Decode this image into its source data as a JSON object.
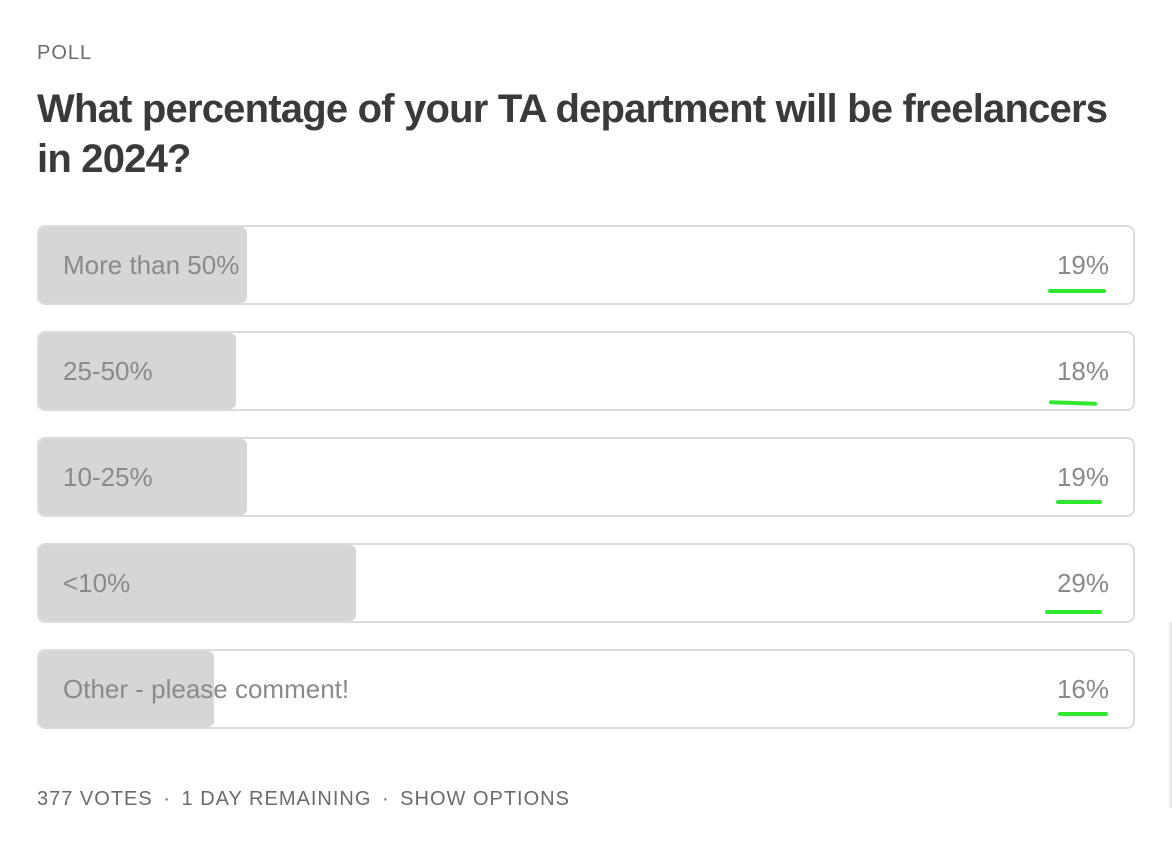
{
  "poll": {
    "label": "POLL",
    "question": "What percentage of your TA department will be freelancers in 2024?",
    "options": [
      {
        "text": "More than 50%",
        "percent_label": "19%",
        "fill": 0.19
      },
      {
        "text": "25-50%",
        "percent_label": "18%",
        "fill": 0.18
      },
      {
        "text": "10-25%",
        "percent_label": "19%",
        "fill": 0.19
      },
      {
        "text": "<10%",
        "percent_label": "29%",
        "fill": 0.29
      },
      {
        "text": "Other - please comment!",
        "percent_label": "16%",
        "fill": 0.16
      }
    ],
    "footer": {
      "votes": "377 VOTES",
      "separator": "·",
      "remaining": "1 DAY REMAINING",
      "show_options": "SHOW OPTIONS"
    }
  },
  "colors": {
    "fill": "#d6d6d6",
    "border": "#dcdcdc",
    "annotation": "#2ee82e"
  }
}
